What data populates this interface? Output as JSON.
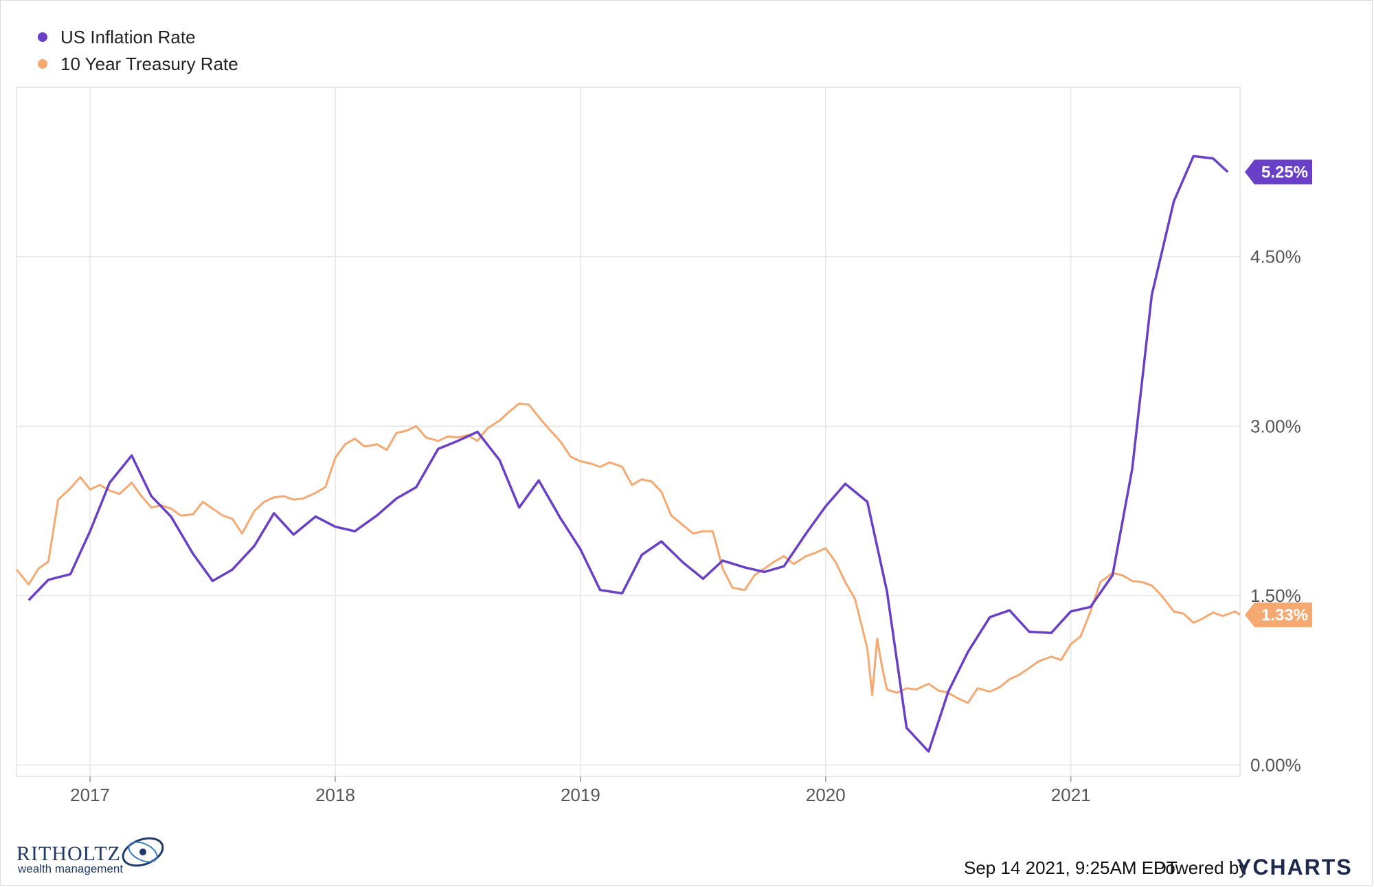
{
  "chart_data": {
    "type": "line",
    "title": "",
    "xlabel": "",
    "ylabel": "",
    "x_ticks": [
      "2017",
      "2018",
      "2019",
      "2020",
      "2021"
    ],
    "y_ticks": [
      "0.00%",
      "1.50%",
      "3.00%",
      "4.50%"
    ],
    "y_tick_values": [
      0,
      1.5,
      3.0,
      4.5
    ],
    "ylim": [
      -0.1,
      6.0
    ],
    "xlim": [
      2016.7,
      2021.69
    ],
    "grid": true,
    "legend_position": "top-left",
    "series": [
      {
        "name": "US Inflation Rate",
        "color": "#6a3fc8",
        "end_label": "5.25%",
        "x": [
          2016.75,
          2016.83,
          2016.92,
          2017.0,
          2017.08,
          2017.17,
          2017.25,
          2017.33,
          2017.42,
          2017.5,
          2017.58,
          2017.67,
          2017.75,
          2017.83,
          2017.92,
          2018.0,
          2018.08,
          2018.17,
          2018.25,
          2018.33,
          2018.42,
          2018.5,
          2018.58,
          2018.67,
          2018.75,
          2018.83,
          2018.92,
          2019.0,
          2019.08,
          2019.17,
          2019.25,
          2019.33,
          2019.42,
          2019.5,
          2019.58,
          2019.67,
          2019.75,
          2019.83,
          2019.92,
          2020.0,
          2020.08,
          2020.17,
          2020.25,
          2020.33,
          2020.42,
          2020.5,
          2020.58,
          2020.67,
          2020.75,
          2020.83,
          2020.92,
          2021.0,
          2021.08,
          2021.17,
          2021.25,
          2021.33,
          2021.42,
          2021.5,
          2021.58,
          2021.64
        ],
        "values": [
          1.46,
          1.64,
          1.69,
          2.07,
          2.5,
          2.74,
          2.38,
          2.2,
          1.87,
          1.63,
          1.73,
          1.94,
          2.23,
          2.04,
          2.2,
          2.11,
          2.07,
          2.21,
          2.36,
          2.46,
          2.8,
          2.87,
          2.95,
          2.7,
          2.28,
          2.52,
          2.18,
          1.91,
          1.55,
          1.52,
          1.86,
          1.98,
          1.79,
          1.65,
          1.81,
          1.75,
          1.71,
          1.76,
          2.05,
          2.29,
          2.49,
          2.33,
          1.54,
          0.33,
          0.12,
          0.65,
          1.0,
          1.31,
          1.37,
          1.18,
          1.17,
          1.36,
          1.4,
          1.68,
          2.62,
          4.16,
          4.99,
          5.39,
          5.37,
          5.25
        ]
      },
      {
        "name": "10 Year Treasury Rate",
        "color": "#f5a971",
        "end_label": "1.33%",
        "x": [
          2016.7,
          2016.75,
          2016.79,
          2016.83,
          2016.87,
          2016.92,
          2016.96,
          2017.0,
          2017.04,
          2017.08,
          2017.12,
          2017.17,
          2017.21,
          2017.25,
          2017.29,
          2017.33,
          2017.37,
          2017.42,
          2017.46,
          2017.5,
          2017.54,
          2017.58,
          2017.62,
          2017.67,
          2017.71,
          2017.75,
          2017.79,
          2017.83,
          2017.87,
          2017.92,
          2017.96,
          2018.0,
          2018.04,
          2018.08,
          2018.12,
          2018.17,
          2018.21,
          2018.25,
          2018.29,
          2018.33,
          2018.37,
          2018.42,
          2018.46,
          2018.5,
          2018.54,
          2018.58,
          2018.62,
          2018.67,
          2018.71,
          2018.75,
          2018.79,
          2018.83,
          2018.87,
          2018.92,
          2018.96,
          2019.0,
          2019.04,
          2019.08,
          2019.12,
          2019.17,
          2019.21,
          2019.25,
          2019.29,
          2019.33,
          2019.37,
          2019.42,
          2019.46,
          2019.5,
          2019.54,
          2019.58,
          2019.62,
          2019.67,
          2019.71,
          2019.75,
          2019.79,
          2019.83,
          2019.87,
          2019.92,
          2019.96,
          2020.0,
          2020.04,
          2020.08,
          2020.12,
          2020.17,
          2020.19,
          2020.21,
          2020.23,
          2020.25,
          2020.29,
          2020.33,
          2020.37,
          2020.42,
          2020.46,
          2020.5,
          2020.54,
          2020.58,
          2020.62,
          2020.67,
          2020.71,
          2020.75,
          2020.79,
          2020.83,
          2020.87,
          2020.92,
          2020.96,
          2021.0,
          2021.04,
          2021.08,
          2021.12,
          2021.17,
          2021.21,
          2021.25,
          2021.29,
          2021.33,
          2021.37,
          2021.42,
          2021.46,
          2021.5,
          2021.54,
          2021.58,
          2021.62,
          2021.67,
          2021.69
        ],
        "values": [
          1.73,
          1.6,
          1.74,
          1.8,
          2.35,
          2.45,
          2.55,
          2.44,
          2.48,
          2.43,
          2.4,
          2.5,
          2.38,
          2.28,
          2.3,
          2.27,
          2.21,
          2.22,
          2.33,
          2.27,
          2.21,
          2.18,
          2.05,
          2.25,
          2.33,
          2.37,
          2.38,
          2.35,
          2.36,
          2.41,
          2.46,
          2.72,
          2.84,
          2.89,
          2.82,
          2.84,
          2.79,
          2.94,
          2.96,
          3.0,
          2.9,
          2.87,
          2.91,
          2.9,
          2.92,
          2.87,
          2.98,
          3.05,
          3.13,
          3.2,
          3.19,
          3.08,
          2.98,
          2.86,
          2.73,
          2.69,
          2.67,
          2.64,
          2.68,
          2.64,
          2.48,
          2.53,
          2.51,
          2.42,
          2.21,
          2.12,
          2.05,
          2.07,
          2.07,
          1.74,
          1.57,
          1.55,
          1.68,
          1.74,
          1.8,
          1.85,
          1.78,
          1.85,
          1.88,
          1.92,
          1.8,
          1.62,
          1.47,
          1.03,
          0.62,
          1.12,
          0.87,
          0.67,
          0.64,
          0.68,
          0.67,
          0.72,
          0.66,
          0.64,
          0.59,
          0.55,
          0.68,
          0.65,
          0.69,
          0.76,
          0.8,
          0.86,
          0.92,
          0.96,
          0.93,
          1.07,
          1.14,
          1.36,
          1.62,
          1.7,
          1.68,
          1.63,
          1.62,
          1.59,
          1.5,
          1.36,
          1.34,
          1.26,
          1.3,
          1.35,
          1.32,
          1.36,
          1.33
        ]
      }
    ]
  },
  "footer": {
    "timestamp": "Sep 14 2021, 9:25AM EDT.",
    "powered_by": "Powered by",
    "brand": "YCHARTS"
  },
  "logo": {
    "name": "RITHOLTZ",
    "subtitle": "wealth management"
  }
}
